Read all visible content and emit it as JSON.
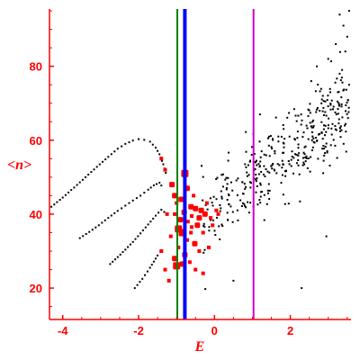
{
  "chart_data": {
    "type": "scatter",
    "title": "",
    "xlabel": "E",
    "ylabel": "<n>",
    "xlim": [
      -4.35,
      3.6
    ],
    "ylim": [
      11.5,
      95.5
    ],
    "x_ticks": [
      -4,
      -2,
      0,
      2
    ],
    "x_tick_labels": [
      "-4",
      "-2",
      "0",
      "2"
    ],
    "y_ticks": [
      20,
      40,
      60,
      80
    ],
    "y_tick_labels": [
      "20",
      "40",
      "60",
      "80"
    ],
    "grid": false,
    "legend": "none",
    "colors": {
      "axis": "#ff0000",
      "band_points": "#000000",
      "cloud_points": "#000000",
      "hist_points": "#ff0000",
      "line_green": "#008000",
      "line_blue": "#0000ff",
      "line_magenta": "#cc00cc"
    },
    "vertical_lines": [
      {
        "name": "green-line",
        "x": -0.98,
        "color": "#008000",
        "width": 2
      },
      {
        "name": "blue-line",
        "x": -0.78,
        "color": "#0000ff",
        "width": 4
      },
      {
        "name": "magenta-line",
        "x": 1.03,
        "color": "#cc00cc",
        "width": 2
      }
    ],
    "band_curves": [
      {
        "x": [
          -4.3,
          -4.0,
          -3.7,
          -3.4,
          -3.1,
          -2.8,
          -2.55,
          -2.35,
          -2.15,
          -2.0,
          -1.85,
          -1.7,
          -1.55,
          -1.45,
          -1.35,
          -1.25
        ],
        "y": [
          42,
          44.5,
          47.2,
          50,
          52.8,
          55.5,
          57.7,
          59,
          59.9,
          60.3,
          60.1,
          59.6,
          58,
          56.2,
          53.5,
          50
        ]
      },
      {
        "x": [
          -3.55,
          -3.3,
          -3.05,
          -2.8,
          -2.55,
          -2.35,
          -2.15,
          -1.95,
          -1.75,
          -1.6,
          -1.45,
          -1.35
        ],
        "y": [
          33.5,
          35.2,
          37,
          39,
          40.9,
          42.3,
          43.7,
          45,
          46.6,
          47.8,
          48.5,
          47
        ]
      },
      {
        "x": [
          -2.75,
          -2.55,
          -2.35,
          -2.15,
          -1.95,
          -1.75,
          -1.55,
          -1.4,
          -1.25
        ],
        "y": [
          26.5,
          28.4,
          30.4,
          32.5,
          34.8,
          37.2,
          39.6,
          41.2,
          40
        ]
      },
      {
        "x": [
          -2.1,
          -1.9,
          -1.7,
          -1.5,
          -1.35
        ],
        "y": [
          20,
          22.5,
          25.5,
          28.8,
          31
        ]
      }
    ],
    "cloud": {
      "x_min": -0.35,
      "x_max": 3.55,
      "y_at_xmin": 38,
      "slope": 8.2,
      "spread": 5.5,
      "count": 380
    },
    "cloud_extra_points": [
      {
        "x": 3.55,
        "y": 95
      },
      {
        "x": 3.3,
        "y": 94
      },
      {
        "x": 3.4,
        "y": 91
      },
      {
        "x": 3.5,
        "y": 88
      },
      {
        "x": 3.2,
        "y": 86
      },
      {
        "x": 3.45,
        "y": 84
      },
      {
        "x": 3.0,
        "y": 82
      },
      {
        "x": 2.7,
        "y": 80
      },
      {
        "x": 3.3,
        "y": 78
      },
      {
        "x": 2.55,
        "y": 76
      },
      {
        "x": 3.55,
        "y": 75
      },
      {
        "x": 1.2,
        "y": 67
      },
      {
        "x": 2.3,
        "y": 20
      },
      {
        "x": 2.95,
        "y": 34
      },
      {
        "x": 0.5,
        "y": 22
      }
    ],
    "hist_points": [
      {
        "x": -0.78,
        "y": 51,
        "size": 4
      },
      {
        "x": -1.12,
        "y": 48,
        "size": 3
      },
      {
        "x": -0.72,
        "y": 47,
        "size": 3
      },
      {
        "x": -1.05,
        "y": 45,
        "size": 3
      },
      {
        "x": -0.55,
        "y": 45,
        "size": 2
      },
      {
        "x": -0.88,
        "y": 44,
        "size": 3
      },
      {
        "x": -1.0,
        "y": 43,
        "size": 2
      },
      {
        "x": -0.62,
        "y": 42,
        "size": 3
      },
      {
        "x": -0.5,
        "y": 41.5,
        "size": 3
      },
      {
        "x": -0.35,
        "y": 41,
        "size": 3
      },
      {
        "x": -0.8,
        "y": 40.5,
        "size": 3
      },
      {
        "x": -1.05,
        "y": 40,
        "size": 2
      },
      {
        "x": -0.25,
        "y": 40,
        "size": 3
      },
      {
        "x": -0.6,
        "y": 39.5,
        "size": 2
      },
      {
        "x": -0.4,
        "y": 39,
        "size": 3
      },
      {
        "x": -0.1,
        "y": 39,
        "size": 2
      },
      {
        "x": -0.9,
        "y": 38.5,
        "size": 3
      },
      {
        "x": -0.7,
        "y": 38,
        "size": 2
      },
      {
        "x": -0.45,
        "y": 37,
        "size": 3
      },
      {
        "x": -0.95,
        "y": 36,
        "size": 4
      },
      {
        "x": -0.85,
        "y": 35,
        "size": 4
      },
      {
        "x": -0.62,
        "y": 35,
        "size": 2
      },
      {
        "x": -0.3,
        "y": 35,
        "size": 2
      },
      {
        "x": -1.15,
        "y": 34,
        "size": 2
      },
      {
        "x": -0.72,
        "y": 33,
        "size": 2
      },
      {
        "x": -0.52,
        "y": 32,
        "size": 3
      },
      {
        "x": -0.95,
        "y": 31,
        "size": 2
      },
      {
        "x": -0.4,
        "y": 30,
        "size": 2
      },
      {
        "x": -0.78,
        "y": 29,
        "size": 3
      },
      {
        "x": -1.05,
        "y": 28,
        "size": 3
      },
      {
        "x": -0.65,
        "y": 27,
        "size": 2
      },
      {
        "x": -1.0,
        "y": 26,
        "size": 4
      },
      {
        "x": -0.85,
        "y": 26.5,
        "size": 3
      },
      {
        "x": -0.5,
        "y": 25,
        "size": 2
      },
      {
        "x": -1.3,
        "y": 25,
        "size": 2
      },
      {
        "x": -0.3,
        "y": 24,
        "size": 2
      },
      {
        "x": -1.2,
        "y": 22,
        "size": 2
      },
      {
        "x": -1.4,
        "y": 30,
        "size": 2
      },
      {
        "x": -0.15,
        "y": 31,
        "size": 2
      },
      {
        "x": 0.05,
        "y": 41,
        "size": 2
      },
      {
        "x": -1.25,
        "y": 40,
        "size": 2
      },
      {
        "x": -0.2,
        "y": 43,
        "size": 2
      },
      {
        "x": -1.4,
        "y": 55,
        "size": 2
      },
      {
        "x": -1.3,
        "y": 52,
        "size": 2
      },
      {
        "x": -0.6,
        "y": 36.5,
        "size": 2
      },
      {
        "x": -0.05,
        "y": 37,
        "size": 2
      },
      {
        "x": 0.1,
        "y": 40,
        "size": 2
      }
    ]
  }
}
